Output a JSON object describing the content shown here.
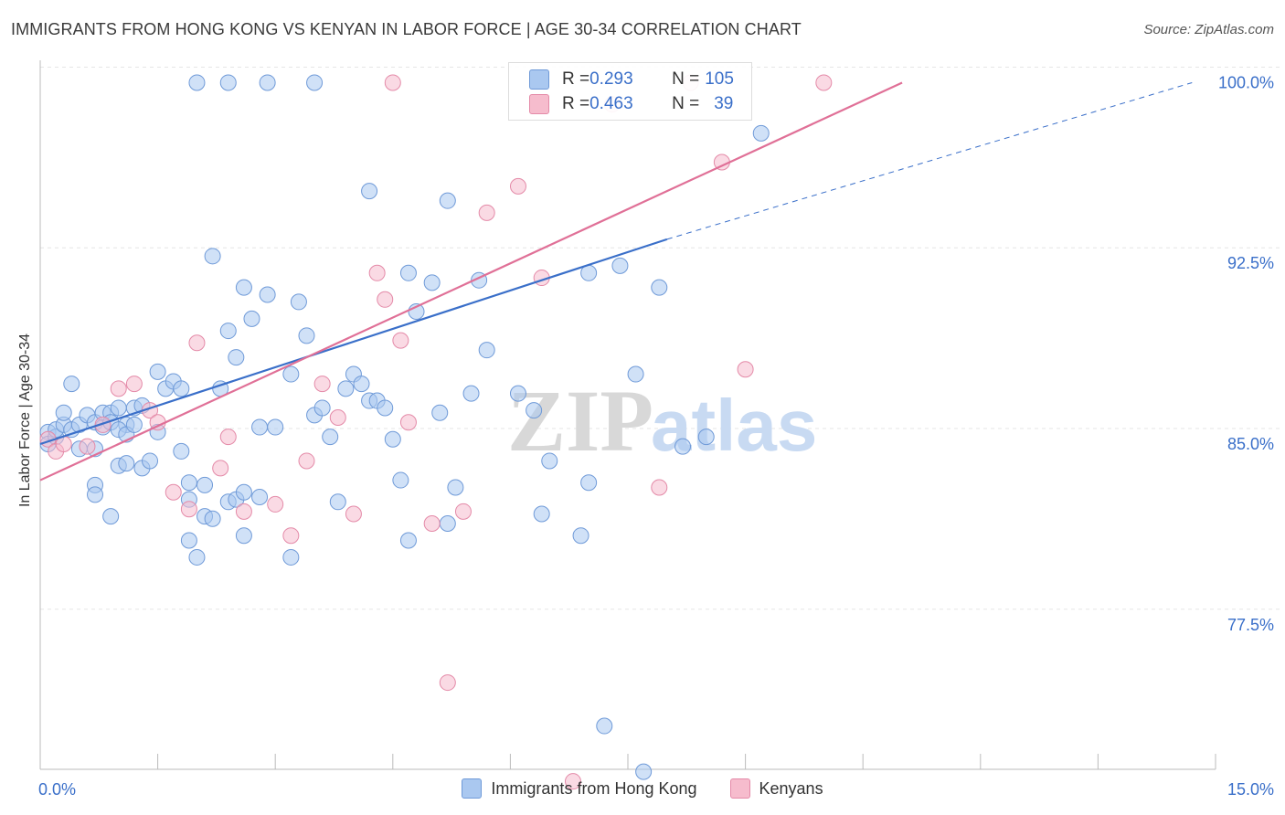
{
  "title": "IMMIGRANTS FROM HONG KONG VS KENYAN IN LABOR FORCE | AGE 30-34 CORRELATION CHART",
  "source": "Source: ZipAtlas.com",
  "watermark": {
    "zip": "ZIP",
    "atlas": "atlas"
  },
  "colors": {
    "blue_fill": "#aac8f0",
    "blue_stroke": "#6f9ad8",
    "blue_line": "#3a6fc9",
    "pink_fill": "#f6bccd",
    "pink_stroke": "#e48aa8",
    "pink_line": "#e07097",
    "tick_text": "#3a6fc9",
    "grid": "#e5e5e5"
  },
  "stats": [
    {
      "r_label": "R = ",
      "r": "0.293",
      "n_label": "N = ",
      "n": "105",
      "color": "#aac8f0",
      "stroke": "#6f9ad8"
    },
    {
      "r_label": "R = ",
      "r": "0.463",
      "n_label": "N = ",
      "n": "39",
      "color": "#f6bccd",
      "stroke": "#e48aa8"
    }
  ],
  "legend": [
    {
      "name": "Immigrants from Hong Kong",
      "color": "#aac8f0",
      "stroke": "#6f9ad8"
    },
    {
      "name": "Kenyans",
      "color": "#f6bccd",
      "stroke": "#e48aa8"
    }
  ],
  "chart_data": {
    "type": "scatter",
    "title": "IMMIGRANTS FROM HONG KONG VS KENYAN IN LABOR FORCE | AGE 30-34 CORRELATION CHART",
    "xlabel": "",
    "ylabel": "In Labor Force | Age 30-34",
    "xlim": [
      0,
      15
    ],
    "ylim": [
      71.5,
      100.7
    ],
    "x_tick_labels": [
      {
        "value": 0,
        "label": "0.0%"
      },
      {
        "value": 15,
        "label": "15.0%"
      }
    ],
    "y_tick_labels": [
      {
        "value": 100,
        "label": "100.0%"
      },
      {
        "value": 92.5,
        "label": "92.5%"
      },
      {
        "value": 85,
        "label": "85.0%"
      },
      {
        "value": 77.5,
        "label": "77.5%"
      }
    ],
    "grid": true,
    "legend_position": "bottom",
    "series": [
      {
        "name": "Immigrants from Hong Kong",
        "r": 0.293,
        "n": 105,
        "trend": {
          "x": [
            0.0,
            8.0
          ],
          "y": [
            85.0,
            93.5
          ],
          "dashed_to": [
            14.7,
            100.0
          ]
        },
        "points": [
          [
            0.1,
            85.5
          ],
          [
            0.1,
            85.0
          ],
          [
            0.2,
            85.3
          ],
          [
            0.2,
            85.6
          ],
          [
            0.3,
            85.8
          ],
          [
            0.3,
            86.3
          ],
          [
            0.4,
            85.6
          ],
          [
            0.4,
            87.5
          ],
          [
            0.5,
            85.8
          ],
          [
            0.5,
            84.8
          ],
          [
            0.6,
            86.2
          ],
          [
            0.7,
            85.9
          ],
          [
            0.7,
            84.8
          ],
          [
            0.8,
            85.7
          ],
          [
            0.8,
            86.3
          ],
          [
            0.9,
            86.3
          ],
          [
            0.9,
            85.9
          ],
          [
            1.0,
            86.5
          ],
          [
            1.0,
            84.1
          ],
          [
            1.1,
            85.8
          ],
          [
            0.7,
            83.3
          ],
          [
            0.7,
            82.9
          ],
          [
            0.9,
            82.0
          ],
          [
            1.0,
            85.6
          ],
          [
            1.1,
            85.4
          ],
          [
            1.1,
            84.2
          ],
          [
            1.2,
            85.8
          ],
          [
            1.2,
            86.5
          ],
          [
            1.3,
            86.6
          ],
          [
            1.3,
            84.0
          ],
          [
            1.4,
            84.3
          ],
          [
            1.5,
            85.5
          ],
          [
            1.5,
            88.0
          ],
          [
            1.6,
            87.3
          ],
          [
            1.7,
            87.6
          ],
          [
            1.8,
            87.3
          ],
          [
            1.8,
            84.7
          ],
          [
            1.9,
            81.0
          ],
          [
            2.0,
            80.3
          ],
          [
            2.1,
            82.0
          ],
          [
            1.9,
            83.4
          ],
          [
            2.1,
            83.3
          ],
          [
            2.2,
            81.9
          ],
          [
            2.3,
            87.3
          ],
          [
            2.4,
            82.6
          ],
          [
            2.5,
            82.7
          ],
          [
            2.6,
            83.0
          ],
          [
            2.6,
            81.2
          ],
          [
            2.8,
            82.8
          ],
          [
            2.8,
            85.7
          ],
          [
            1.9,
            82.7
          ],
          [
            2.2,
            92.8
          ],
          [
            2.4,
            89.7
          ],
          [
            2.5,
            88.6
          ],
          [
            2.6,
            91.5
          ],
          [
            2.7,
            90.2
          ],
          [
            2.9,
            91.2
          ],
          [
            3.0,
            85.7
          ],
          [
            3.2,
            80.3
          ],
          [
            3.2,
            87.9
          ],
          [
            3.3,
            90.9
          ],
          [
            3.4,
            89.5
          ],
          [
            3.5,
            86.2
          ],
          [
            3.6,
            86.5
          ],
          [
            3.7,
            85.3
          ],
          [
            3.8,
            82.6
          ],
          [
            3.9,
            87.3
          ],
          [
            4.0,
            87.9
          ],
          [
            4.1,
            87.5
          ],
          [
            4.2,
            86.8
          ],
          [
            4.2,
            95.5
          ],
          [
            4.3,
            86.8
          ],
          [
            4.4,
            86.5
          ],
          [
            4.5,
            85.2
          ],
          [
            4.6,
            83.5
          ],
          [
            4.7,
            81.0
          ],
          [
            4.7,
            92.1
          ],
          [
            4.8,
            90.5
          ],
          [
            5.0,
            91.7
          ],
          [
            5.1,
            86.3
          ],
          [
            5.2,
            81.7
          ],
          [
            5.2,
            95.1
          ],
          [
            5.3,
            83.2
          ],
          [
            5.5,
            87.1
          ],
          [
            5.6,
            91.8
          ],
          [
            5.7,
            88.9
          ],
          [
            6.1,
            87.1
          ],
          [
            6.3,
            86.4
          ],
          [
            6.4,
            82.1
          ],
          [
            6.5,
            84.3
          ],
          [
            6.9,
            81.2
          ],
          [
            7.0,
            83.4
          ],
          [
            7.0,
            92.1
          ],
          [
            7.4,
            92.4
          ],
          [
            7.6,
            87.9
          ],
          [
            7.9,
            91.5
          ],
          [
            8.2,
            84.9
          ],
          [
            8.5,
            85.3
          ],
          [
            9.2,
            97.9
          ],
          [
            7.2,
            73.3
          ],
          [
            7.7,
            71.4
          ],
          [
            2.0,
            100.0
          ],
          [
            2.4,
            100.0
          ],
          [
            2.9,
            100.0
          ],
          [
            3.5,
            100.0
          ]
        ]
      },
      {
        "name": "Kenyans",
        "r": 0.463,
        "n": 39,
        "trend": {
          "x": [
            0.0,
            11.0
          ],
          "y": [
            83.5,
            100.0
          ]
        },
        "points": [
          [
            0.1,
            85.2
          ],
          [
            0.2,
            84.7
          ],
          [
            0.3,
            85.0
          ],
          [
            0.6,
            84.9
          ],
          [
            0.8,
            85.8
          ],
          [
            1.0,
            87.3
          ],
          [
            1.2,
            87.5
          ],
          [
            1.4,
            86.4
          ],
          [
            1.7,
            83.0
          ],
          [
            1.9,
            82.3
          ],
          [
            2.0,
            89.2
          ],
          [
            2.3,
            84.0
          ],
          [
            2.4,
            85.3
          ],
          [
            2.6,
            82.2
          ],
          [
            3.0,
            82.5
          ],
          [
            3.2,
            81.2
          ],
          [
            3.4,
            84.3
          ],
          [
            3.6,
            87.5
          ],
          [
            3.8,
            86.1
          ],
          [
            4.0,
            82.1
          ],
          [
            4.3,
            92.1
          ],
          [
            4.4,
            91.0
          ],
          [
            4.6,
            89.3
          ],
          [
            4.7,
            85.9
          ],
          [
            5.0,
            81.7
          ],
          [
            5.2,
            75.1
          ],
          [
            5.4,
            82.2
          ],
          [
            5.7,
            94.6
          ],
          [
            6.1,
            95.7
          ],
          [
            6.4,
            91.9
          ],
          [
            6.8,
            71.0
          ],
          [
            7.3,
            99.1
          ],
          [
            7.9,
            83.2
          ],
          [
            8.3,
            100.0
          ],
          [
            8.7,
            96.7
          ],
          [
            9.0,
            88.1
          ],
          [
            10.0,
            100.0
          ],
          [
            4.5,
            100.0
          ],
          [
            1.5,
            85.9
          ]
        ]
      }
    ]
  }
}
